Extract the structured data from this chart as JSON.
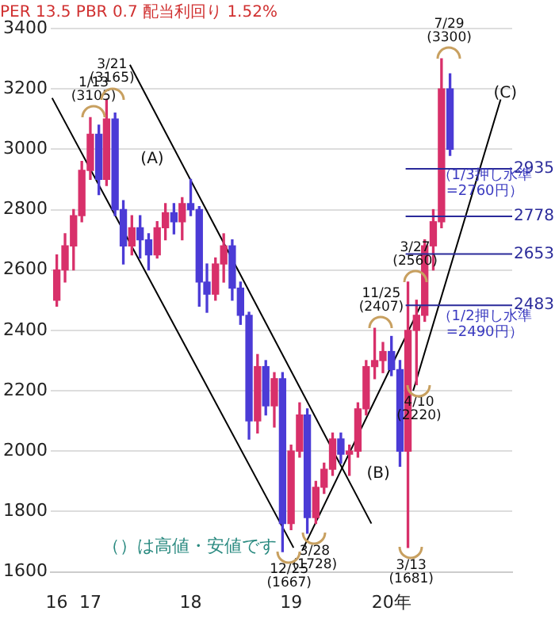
{
  "chart_data": {
    "type": "candlestick",
    "title": "PER 13.5 PBR 0.7 配当利回り 1.52%",
    "x": [
      "2016-09",
      "2016-10",
      "2016-11",
      "2016-12",
      "2017-01",
      "2017-02",
      "2017-03",
      "2017-04",
      "2017-05",
      "2017-06",
      "2017-07",
      "2017-08",
      "2017-09",
      "2017-10",
      "2017-11",
      "2017-12",
      "2018-01",
      "2018-02",
      "2018-03",
      "2018-04",
      "2018-05",
      "2018-06",
      "2018-07",
      "2018-08",
      "2018-09",
      "2018-10",
      "2018-11",
      "2018-12",
      "2019-01",
      "2019-02",
      "2019-03",
      "2019-04",
      "2019-05",
      "2019-06",
      "2019-07",
      "2019-08",
      "2019-09",
      "2019-10",
      "2019-11",
      "2019-12",
      "2020-01",
      "2020-02",
      "2020-03",
      "2020-04",
      "2020-05",
      "2020-06",
      "2020-07",
      "2020-08"
    ],
    "ohlc": [
      [
        2500,
        2650,
        2480,
        2600
      ],
      [
        2600,
        2720,
        2560,
        2680
      ],
      [
        2680,
        2800,
        2600,
        2780
      ],
      [
        2780,
        2960,
        2760,
        2930
      ],
      [
        2930,
        3105,
        2900,
        3050
      ],
      [
        3050,
        3080,
        2850,
        2900
      ],
      [
        2900,
        3165,
        2880,
        3100
      ],
      [
        3100,
        3120,
        2780,
        2800
      ],
      [
        2800,
        2830,
        2620,
        2680
      ],
      [
        2680,
        2780,
        2650,
        2740
      ],
      [
        2740,
        2780,
        2640,
        2700
      ],
      [
        2700,
        2720,
        2600,
        2650
      ],
      [
        2650,
        2760,
        2640,
        2740
      ],
      [
        2740,
        2820,
        2700,
        2790
      ],
      [
        2790,
        2820,
        2720,
        2760
      ],
      [
        2760,
        2840,
        2700,
        2820
      ],
      [
        2820,
        2900,
        2780,
        2800
      ],
      [
        2800,
        2810,
        2480,
        2560
      ],
      [
        2560,
        2620,
        2460,
        2520
      ],
      [
        2520,
        2640,
        2500,
        2620
      ],
      [
        2620,
        2720,
        2560,
        2680
      ],
      [
        2680,
        2700,
        2500,
        2540
      ],
      [
        2540,
        2560,
        2420,
        2450
      ],
      [
        2450,
        2460,
        2040,
        2100
      ],
      [
        2100,
        2320,
        2060,
        2280
      ],
      [
        2280,
        2300,
        2120,
        2150
      ],
      [
        2150,
        2260,
        2080,
        2240
      ],
      [
        2240,
        2260,
        1667,
        1760
      ],
      [
        1760,
        2020,
        1740,
        2000
      ],
      [
        2000,
        2160,
        1980,
        2120
      ],
      [
        2120,
        2140,
        1728,
        1780
      ],
      [
        1780,
        1900,
        1760,
        1880
      ],
      [
        1880,
        1960,
        1860,
        1940
      ],
      [
        1940,
        2060,
        1920,
        2040
      ],
      [
        2040,
        2060,
        1960,
        1990
      ],
      [
        1990,
        2020,
        1920,
        2000
      ],
      [
        2000,
        2160,
        1980,
        2140
      ],
      [
        2140,
        2300,
        2120,
        2280
      ],
      [
        2280,
        2407,
        2240,
        2300
      ],
      [
        2300,
        2360,
        2260,
        2330
      ],
      [
        2330,
        2380,
        2250,
        2270
      ],
      [
        2270,
        2300,
        1950,
        2000
      ],
      [
        2000,
        2560,
        1681,
        2400
      ],
      [
        2400,
        2500,
        2220,
        2450
      ],
      [
        2450,
        2700,
        2430,
        2680
      ],
      [
        2680,
        2800,
        2600,
        2760
      ],
      [
        2760,
        3300,
        2740,
        3200
      ],
      [
        3200,
        3250,
        2980,
        3000
      ]
    ],
    "colors": [
      "#d8306a",
      "#d8306a",
      "#d8306a",
      "#d8306a",
      "#d8306a",
      "#4b3bd6",
      "#d8306a",
      "#4b3bd6",
      "#4b3bd6",
      "#d8306a",
      "#4b3bd6",
      "#4b3bd6",
      "#d8306a",
      "#d8306a",
      "#4b3bd6",
      "#d8306a",
      "#4b3bd6",
      "#4b3bd6",
      "#4b3bd6",
      "#d8306a",
      "#d8306a",
      "#4b3bd6",
      "#4b3bd6",
      "#4b3bd6",
      "#d8306a",
      "#4b3bd6",
      "#d8306a",
      "#4b3bd6",
      "#d8306a",
      "#d8306a",
      "#4b3bd6",
      "#d8306a",
      "#d8306a",
      "#d8306a",
      "#4b3bd6",
      "#d8306a",
      "#d8306a",
      "#d8306a",
      "#d8306a",
      "#d8306a",
      "#4b3bd6",
      "#4b3bd6",
      "#d8306a",
      "#d8306a",
      "#d8306a",
      "#d8306a",
      "#d8306a",
      "#4b3bd6"
    ],
    "series": [
      {
        "type": "line",
        "color": "#000000",
        "x": [
          "2016-08-15",
          "2019-01-10"
        ],
        "values": [
          3170,
          1680
        ]
      },
      {
        "type": "line",
        "color": "#000000",
        "x": [
          "2017-05-25",
          "2019-10-20"
        ],
        "values": [
          3280,
          1760
        ]
      },
      {
        "type": "line",
        "color": "#000000",
        "x": [
          "2019-02-10",
          "2020-04-15"
        ],
        "values": [
          1670,
          2480
        ]
      },
      {
        "type": "line",
        "color": "#000000",
        "x": [
          "2020-03-20",
          "2021-02-01"
        ],
        "values": [
          2200,
          3165
        ]
      }
    ],
    "ref_lines": [
      {
        "axis": "y",
        "value": 2935,
        "label": "2935",
        "color": "#2a2a9a"
      },
      {
        "axis": "y",
        "value": 2778,
        "label": "2778",
        "color": "#2a2a9a"
      },
      {
        "axis": "y",
        "value": 2653,
        "label": "2653",
        "color": "#2a2a9a"
      },
      {
        "axis": "y",
        "value": 2483,
        "label": "2483",
        "color": "#2a2a9a"
      }
    ],
    "annotations": [
      {
        "text": "1/13\n(3105)",
        "x": "2017-01-13",
        "y": 3105
      },
      {
        "text": "3/21\n(3165)",
        "x": "2017-03-21",
        "y": 3165
      },
      {
        "text": "12/25\n(1667)",
        "x": "2018-12-25",
        "y": 1667
      },
      {
        "text": "3/28\n(1728)",
        "x": "2019-03-28",
        "y": 1728
      },
      {
        "text": "11/25\n(2407)",
        "x": "2019-11-25",
        "y": 2407
      },
      {
        "text": "3/13\n(1681)",
        "x": "2020-03-13",
        "y": 1681
      },
      {
        "text": "3/27\n(2560)",
        "x": "2020-03-27",
        "y": 2560
      },
      {
        "text": "4/10\n(2220)",
        "x": "2020-04-10",
        "y": 2220
      },
      {
        "text": "7/29\n(3300)",
        "x": "2020-07-29",
        "y": 3300
      },
      "(A)",
      "(B)",
      "(C)",
      "（1/3押し水準\n=2760円）",
      "（1/2押し水準\n=2490円）",
      "（）は高値・安値です"
    ],
    "xlim": [
      "2016-08-10",
      "2021-03-15"
    ],
    "xticks": [
      {
        "value": "2016-09",
        "label": "16"
      },
      {
        "value": "2017-01",
        "label": "17"
      },
      {
        "value": "2018-01",
        "label": "18"
      },
      {
        "value": "2019-01",
        "label": "19"
      },
      {
        "value": "2020-01",
        "label": "20年"
      }
    ],
    "ylim": [
      1600,
      3400
    ],
    "yticks": [
      1600,
      1800,
      2000,
      2200,
      2400,
      2600,
      2800,
      3000,
      3200,
      3400
    ],
    "grid": "y",
    "legend": false
  }
}
